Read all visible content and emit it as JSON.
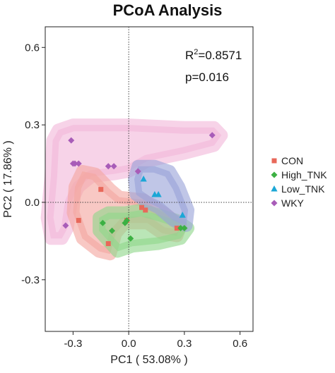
{
  "title": "PCoA Analysis",
  "colors": {
    "CON": "#e8685a",
    "High_TNK": "#3cb043",
    "Low_TNK": "#1ba7d6",
    "WKY": "#a85cb8",
    "CON_hull": "#f4a7a0",
    "High_TNK_hull": "#8fd68a",
    "Low_TNK_hull": "#9aa3d8",
    "WKY_hull": "#f2b8da"
  },
  "chart_data": {
    "type": "scatter",
    "title": "PCoA Analysis",
    "xlabel": "PC1 ( 53.08% )",
    "ylabel": "PC2 ( 17.86% )",
    "xlim": [
      -0.45,
      0.67
    ],
    "ylim": [
      -0.5,
      0.68
    ],
    "xticks": [
      -0.3,
      0.0,
      0.3,
      0.6
    ],
    "xtick_labels": [
      "-0.3",
      "0.0",
      "0.3",
      "0.6"
    ],
    "yticks": [
      -0.3,
      0.0,
      0.3,
      0.6
    ],
    "ytick_labels": [
      "-0.3",
      "0.0",
      "0.3",
      "0.6"
    ],
    "reference_lines": {
      "x": 0,
      "y": 0,
      "style": "dotted"
    },
    "grid": false,
    "legend_position": "right",
    "annotations": {
      "r2_label": "R",
      "r2_sup": "2",
      "r2_value": "=0.8571",
      "p_text": "p=0.016"
    },
    "series": [
      {
        "name": "CON",
        "marker": "square",
        "points": [
          [
            -0.15,
            0.05
          ],
          [
            -0.27,
            -0.07
          ],
          [
            -0.11,
            -0.16
          ],
          [
            -0.01,
            -0.07
          ],
          [
            0.07,
            -0.02
          ],
          [
            0.09,
            -0.03
          ],
          [
            0.26,
            -0.1
          ]
        ],
        "hull": [
          [
            -0.25,
            0.12
          ],
          [
            -0.18,
            0.11
          ],
          [
            -0.1,
            0.05
          ],
          [
            -0.05,
            0.02
          ],
          [
            0.08,
            0.01
          ],
          [
            0.14,
            -0.02
          ],
          [
            0.19,
            -0.04
          ],
          [
            0.28,
            -0.09
          ],
          [
            0.26,
            -0.13
          ],
          [
            0.18,
            -0.12
          ],
          [
            0.1,
            -0.08
          ],
          [
            -0.02,
            -0.08
          ],
          [
            -0.07,
            -0.12
          ],
          [
            -0.1,
            -0.2
          ],
          [
            -0.16,
            -0.19
          ],
          [
            -0.25,
            -0.14
          ],
          [
            -0.3,
            -0.04
          ],
          [
            -0.29,
            0.06
          ]
        ]
      },
      {
        "name": "High_TNK",
        "marker": "diamond",
        "points": [
          [
            -0.14,
            -0.08
          ],
          [
            -0.09,
            -0.11
          ],
          [
            -0.02,
            -0.08
          ],
          [
            -0.01,
            -0.07
          ],
          [
            0.01,
            -0.14
          ],
          [
            0.28,
            -0.1
          ],
          [
            0.3,
            -0.1
          ]
        ],
        "hull": [
          [
            -0.16,
            -0.06
          ],
          [
            -0.11,
            -0.04
          ],
          [
            -0.02,
            -0.04
          ],
          [
            0.07,
            -0.03
          ],
          [
            0.17,
            -0.05
          ],
          [
            0.26,
            -0.07
          ],
          [
            0.32,
            -0.1
          ],
          [
            0.28,
            -0.14
          ],
          [
            0.16,
            -0.16
          ],
          [
            0.02,
            -0.17
          ],
          [
            -0.06,
            -0.19
          ],
          [
            -0.11,
            -0.15
          ],
          [
            -0.16,
            -0.11
          ]
        ]
      },
      {
        "name": "Low_TNK",
        "marker": "triangle",
        "points": [
          [
            0.08,
            0.09
          ],
          [
            0.14,
            0.03
          ],
          [
            0.16,
            0.03
          ],
          [
            0.29,
            -0.05
          ]
        ],
        "hull": [
          [
            0.05,
            0.14
          ],
          [
            0.14,
            0.14
          ],
          [
            0.22,
            0.12
          ],
          [
            0.27,
            0.06
          ],
          [
            0.32,
            -0.03
          ],
          [
            0.31,
            -0.09
          ],
          [
            0.24,
            -0.07
          ],
          [
            0.16,
            -0.02
          ],
          [
            0.1,
            0.0
          ],
          [
            0.04,
            0.03
          ],
          [
            0.03,
            0.09
          ]
        ]
      },
      {
        "name": "WKY",
        "marker": "diamond",
        "points": [
          [
            -0.31,
            0.24
          ],
          [
            -0.29,
            0.15
          ],
          [
            -0.3,
            0.15
          ],
          [
            -0.27,
            0.15
          ],
          [
            -0.11,
            0.14
          ],
          [
            -0.08,
            0.14
          ],
          [
            0.05,
            0.12
          ],
          [
            0.45,
            0.26
          ],
          [
            -0.34,
            -0.09
          ]
        ],
        "hull": [
          [
            -0.38,
            0.28
          ],
          [
            -0.3,
            0.3
          ],
          [
            0.0,
            0.3
          ],
          [
            0.3,
            0.29
          ],
          [
            0.46,
            0.29
          ],
          [
            0.5,
            0.26
          ],
          [
            0.46,
            0.22
          ],
          [
            0.3,
            0.19
          ],
          [
            0.1,
            0.16
          ],
          [
            0.0,
            0.12
          ],
          [
            -0.08,
            0.11
          ],
          [
            -0.2,
            0.1
          ],
          [
            -0.27,
            0.06
          ],
          [
            -0.31,
            0.0
          ],
          [
            -0.33,
            -0.1
          ],
          [
            -0.36,
            -0.14
          ],
          [
            -0.42,
            -0.14
          ],
          [
            -0.44,
            -0.06
          ],
          [
            -0.42,
            0.1
          ],
          [
            -0.41,
            0.24
          ]
        ]
      }
    ]
  }
}
